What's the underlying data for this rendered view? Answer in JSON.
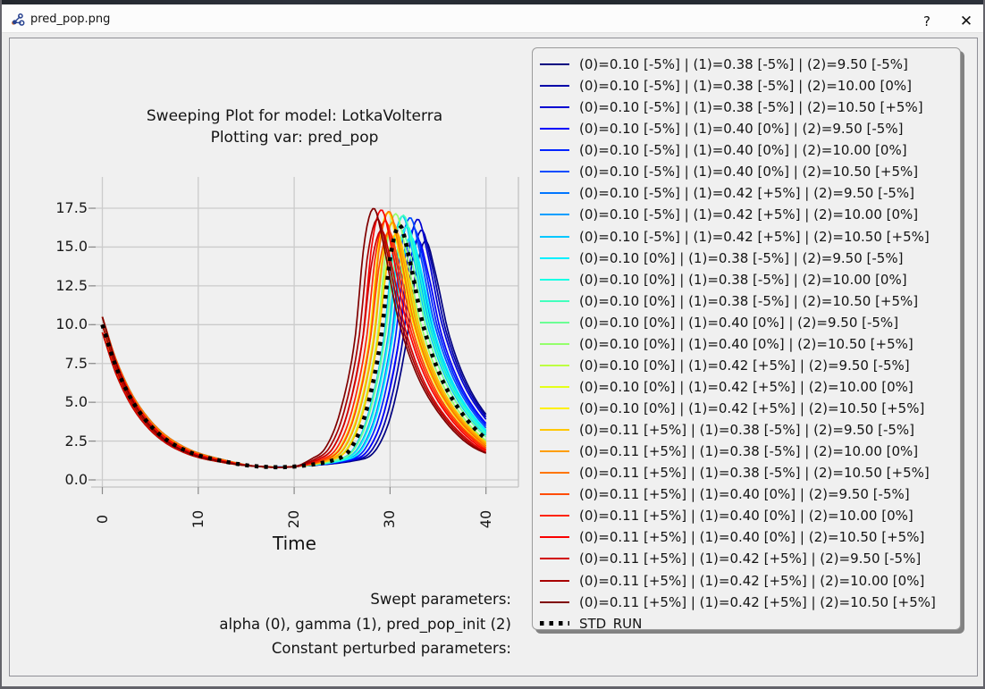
{
  "window": {
    "title": "pred_pop.png",
    "help_label": "?",
    "close_label": "✕"
  },
  "figure": {
    "title_line1": "Sweeping Plot for model: LotkaVolterra",
    "title_line2": "Plotting var: pred_pop",
    "xlabel": "Time",
    "footnote_line1": "Swept parameters:",
    "footnote_line2": "alpha (0), gamma (1), pred_pop_init (2)",
    "footnote_line3": "Constant perturbed parameters:"
  },
  "colors": {
    "window_bg": "#ececec",
    "figure_bg": "#f0f0f0",
    "grid": "#cbcbcb",
    "spine": "#c2c2c2",
    "tick": "#8a8a8a",
    "std_run": "#000000"
  },
  "chart_data": {
    "type": "line",
    "title": "Sweeping Plot for model: LotkaVolterra",
    "subtitle": "Plotting var: pred_pop",
    "xlabel": "Time",
    "ylabel": "",
    "x_ticks": [
      "0",
      "10",
      "20",
      "30",
      "40"
    ],
    "x_tick_values": [
      0,
      10,
      20,
      30,
      40
    ],
    "y_ticks": [
      "0.0",
      "2.5",
      "5.0",
      "7.5",
      "10.0",
      "12.5",
      "15.0",
      "17.5"
    ],
    "y_tick_values": [
      0,
      2.5,
      5,
      7.5,
      10,
      12.5,
      15,
      17.5
    ],
    "xlim": [
      -1.2,
      43.4
    ],
    "ylim": [
      -0.45,
      19.5
    ],
    "grid": true,
    "legend_position": "right",
    "trough_value": 0.85,
    "series": [
      {
        "label": "(0)=0.10 [-5%] | (1)=0.38 [-5%] | (2)=9.50 [-5%]",
        "color": "#000080",
        "y0": 9.5,
        "peak_t": 33.7,
        "peak_h": 15.4,
        "tau": 4.3
      },
      {
        "label": "(0)=0.10 [-5%] | (1)=0.38 [-5%] | (2)=10.00 [0%]",
        "color": "#0000A8",
        "y0": 10.0,
        "peak_t": 33.3,
        "peak_h": 16.1,
        "tau": 4.3
      },
      {
        "label": "(0)=0.10 [-5%] | (1)=0.38 [-5%] | (2)=10.50 [+5%]",
        "color": "#0000D1",
        "y0": 10.5,
        "peak_t": 32.9,
        "peak_h": 16.8,
        "tau": 4.3
      },
      {
        "label": "(0)=0.10 [-5%] | (1)=0.40 [0%] | (2)=9.50 [-5%]",
        "color": "#0000FA",
        "y0": 9.5,
        "peak_t": 32.9,
        "peak_h": 15.5,
        "tau": 4.1
      },
      {
        "label": "(0)=0.10 [-5%] | (1)=0.40 [0%] | (2)=10.00 [0%]",
        "color": "#0024FF",
        "y0": 10.0,
        "peak_t": 32.5,
        "peak_h": 16.2,
        "tau": 4.1
      },
      {
        "label": "(0)=0.10 [-5%] | (1)=0.40 [0%] | (2)=10.50 [+5%]",
        "color": "#004CFF",
        "y0": 10.5,
        "peak_t": 32.1,
        "peak_h": 16.9,
        "tau": 4.1
      },
      {
        "label": "(0)=0.10 [-5%] | (1)=0.42 [+5%] | (2)=9.50 [-5%]",
        "color": "#0075FF",
        "y0": 9.5,
        "peak_t": 32.1,
        "peak_h": 15.6,
        "tau": 3.9
      },
      {
        "label": "(0)=0.10 [-5%] | (1)=0.42 [+5%] | (2)=10.00 [0%]",
        "color": "#009EFF",
        "y0": 10.0,
        "peak_t": 31.7,
        "peak_h": 16.3,
        "tau": 3.9
      },
      {
        "label": "(0)=0.10 [-5%] | (1)=0.42 [+5%] | (2)=10.50 [+5%]",
        "color": "#00C7FF",
        "y0": 10.5,
        "peak_t": 31.3,
        "peak_h": 17.0,
        "tau": 3.9
      },
      {
        "label": "(0)=0.10 [0%] | (1)=0.38 [-5%] | (2)=9.50 [-5%]",
        "color": "#00F0FF",
        "y0": 9.5,
        "peak_t": 32.2,
        "peak_h": 15.65,
        "tau": 4.3
      },
      {
        "label": "(0)=0.10 [0%] | (1)=0.38 [-5%] | (2)=10.00 [0%]",
        "color": "#19FFE5",
        "y0": 10.0,
        "peak_t": 31.8,
        "peak_h": 16.35,
        "tau": 4.3
      },
      {
        "label": "(0)=0.10 [0%] | (1)=0.38 [-5%] | (2)=10.50 [+5%]",
        "color": "#42FFBD",
        "y0": 10.5,
        "peak_t": 31.4,
        "peak_h": 17.05,
        "tau": 4.3
      },
      {
        "label": "(0)=0.10 [0%] | (1)=0.40 [0%] | (2)=9.50 [-5%]",
        "color": "#6BFF94",
        "y0": 9.5,
        "peak_t": 31.4,
        "peak_h": 15.75,
        "tau": 4.1
      },
      {
        "label": "(0)=0.10 [0%] | (1)=0.40 [0%] | (2)=10.50 [+5%]",
        "color": "#94FF6B",
        "y0": 10.5,
        "peak_t": 30.6,
        "peak_h": 17.15,
        "tau": 4.1
      },
      {
        "label": "(0)=0.10 [0%] | (1)=0.42 [+5%] | (2)=9.50 [-5%]",
        "color": "#BDFF42",
        "y0": 9.5,
        "peak_t": 30.6,
        "peak_h": 15.85,
        "tau": 3.9
      },
      {
        "label": "(0)=0.10 [0%] | (1)=0.42 [+5%] | (2)=10.00 [0%]",
        "color": "#E5FF19",
        "y0": 10.0,
        "peak_t": 30.2,
        "peak_h": 16.55,
        "tau": 3.9
      },
      {
        "label": "(0)=0.10 [0%] | (1)=0.42 [+5%] | (2)=10.50 [+5%]",
        "color": "#FFF000",
        "y0": 10.5,
        "peak_t": 29.8,
        "peak_h": 17.25,
        "tau": 3.9
      },
      {
        "label": "(0)=0.11 [+5%] | (1)=0.38 [-5%] | (2)=9.50 [-5%]",
        "color": "#FFC700",
        "y0": 9.5,
        "peak_t": 30.7,
        "peak_h": 15.9,
        "tau": 4.3
      },
      {
        "label": "(0)=0.11 [+5%] | (1)=0.38 [-5%] | (2)=10.00 [0%]",
        "color": "#FF9E00",
        "y0": 10.0,
        "peak_t": 30.3,
        "peak_h": 16.6,
        "tau": 4.3
      },
      {
        "label": "(0)=0.11 [+5%] | (1)=0.38 [-5%] | (2)=10.50 [+5%]",
        "color": "#FF7500",
        "y0": 10.5,
        "peak_t": 29.9,
        "peak_h": 17.3,
        "tau": 4.3
      },
      {
        "label": "(0)=0.11 [+5%] | (1)=0.40 [0%] | (2)=9.50 [-5%]",
        "color": "#FF4C00",
        "y0": 9.5,
        "peak_t": 29.9,
        "peak_h": 16.0,
        "tau": 4.1
      },
      {
        "label": "(0)=0.11 [+5%] | (1)=0.40 [0%] | (2)=10.00 [0%]",
        "color": "#FF2400",
        "y0": 10.0,
        "peak_t": 29.5,
        "peak_h": 16.7,
        "tau": 4.1
      },
      {
        "label": "(0)=0.11 [+5%] | (1)=0.40 [0%] | (2)=10.50 [+5%]",
        "color": "#FA0000",
        "y0": 10.5,
        "peak_t": 29.1,
        "peak_h": 17.4,
        "tau": 4.1
      },
      {
        "label": "(0)=0.11 [+5%] | (1)=0.42 [+5%] | (2)=9.50 [-5%]",
        "color": "#D10000",
        "y0": 9.5,
        "peak_t": 29.1,
        "peak_h": 16.1,
        "tau": 3.9
      },
      {
        "label": "(0)=0.11 [+5%] | (1)=0.42 [+5%] | (2)=10.00 [0%]",
        "color": "#A80000",
        "y0": 10.0,
        "peak_t": 28.7,
        "peak_h": 16.8,
        "tau": 3.9
      },
      {
        "label": "(0)=0.11 [+5%] | (1)=0.42 [+5%] | (2)=10.50 [+5%]",
        "color": "#800000",
        "y0": 10.5,
        "peak_t": 28.3,
        "peak_h": 17.5,
        "tau": 3.9
      }
    ],
    "std_run": {
      "label": "STD_RUN",
      "color": "#000000",
      "style": "dotted",
      "y0": 10.0,
      "peak_t": 31.0,
      "peak_h": 16.4,
      "tau": 4.1
    }
  }
}
